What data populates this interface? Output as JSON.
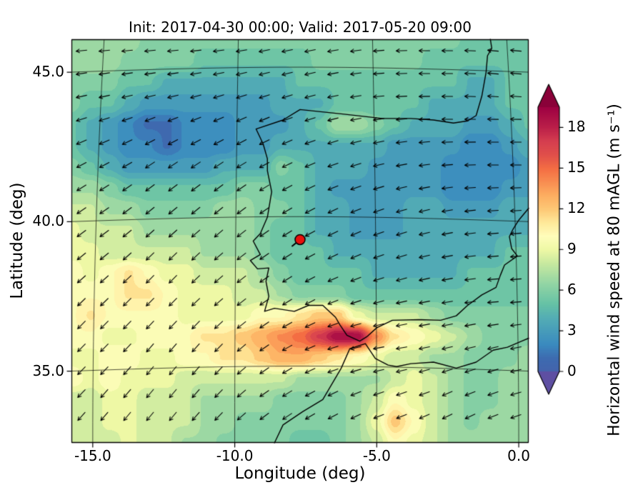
{
  "chart_data": {
    "type": "heatmap",
    "title": "Init: 2017-04-30 00:00; Valid: 2017-05-20 09:00",
    "xlabel": "Longitude (deg)",
    "ylabel": "Latitude (deg)",
    "x_ticks": [
      "-15.0",
      "-10.0",
      "-5.0",
      "0.0"
    ],
    "x_tick_values": [
      -15,
      -10,
      -5,
      0
    ],
    "y_ticks": [
      "45.0",
      "40.0",
      "35.0"
    ],
    "y_tick_values": [
      45,
      40,
      35
    ],
    "x_range": [
      -15.75,
      0.35
    ],
    "y_range": [
      32.6,
      46.1
    ],
    "grid_on": true,
    "colorbar": {
      "label": "Horizontal wind speed at 80 mAGL (m s⁻¹)",
      "ticks": [
        0,
        3,
        6,
        9,
        12,
        15,
        18
      ],
      "range": [
        0,
        19.5
      ],
      "extend": "both",
      "under_color": "#5e4fa2",
      "over_color": "#8a0139",
      "stops": [
        [
          0,
          "#4463ac"
        ],
        [
          1,
          "#3d6bb0"
        ],
        [
          2,
          "#3a8abf"
        ],
        [
          4,
          "#54aeb4"
        ],
        [
          5,
          "#66c2a5"
        ],
        [
          6.5,
          "#93d5a4"
        ],
        [
          8,
          "#c8e99f"
        ],
        [
          9,
          "#eef8a5"
        ],
        [
          10,
          "#fffdbb"
        ],
        [
          11,
          "#fee99a"
        ],
        [
          12,
          "#fdc876"
        ],
        [
          13,
          "#fdae61"
        ],
        [
          14,
          "#f88d51"
        ],
        [
          15,
          "#f46d43"
        ],
        [
          16,
          "#e04f4a"
        ],
        [
          17,
          "#d53e4f"
        ],
        [
          18,
          "#bb2049"
        ],
        [
          19.5,
          "#9e0142"
        ]
      ]
    },
    "wind_speed_grid": {
      "lon_min": -15.75,
      "lon_max": 0.35,
      "lat_min": 32.6,
      "lat_max": 46.1,
      "values_north_to_south": [
        [
          7,
          7,
          7,
          7,
          6,
          6,
          6,
          6,
          6,
          6,
          6,
          6,
          6,
          6,
          6,
          6,
          6,
          6,
          6,
          6,
          6,
          5,
          5,
          5,
          5
        ],
        [
          7,
          7,
          7,
          6,
          6,
          6,
          6,
          5,
          5,
          5,
          5,
          5,
          5,
          6,
          6,
          6,
          6,
          6,
          6,
          5,
          5,
          5,
          5,
          5,
          5
        ],
        [
          6,
          6,
          6,
          5,
          5,
          4,
          4,
          4,
          4,
          4,
          4,
          4,
          5,
          5,
          5,
          5,
          5,
          5,
          5,
          5,
          5,
          4,
          4,
          5,
          5
        ],
        [
          6,
          5,
          5,
          4,
          3,
          3,
          3,
          3,
          3,
          3,
          3,
          4,
          4,
          4,
          5,
          5,
          5,
          5,
          5,
          4,
          4,
          4,
          4,
          5,
          5
        ],
        [
          5,
          4,
          3,
          2,
          1,
          1,
          2,
          2,
          2,
          3,
          3,
          3,
          4,
          5,
          7,
          7,
          6,
          5,
          4,
          4,
          4,
          3,
          3,
          4,
          5
        ],
        [
          5,
          4,
          3,
          2,
          2,
          1,
          2,
          2,
          2,
          3,
          3,
          4,
          4,
          4,
          4,
          4,
          4,
          3,
          3,
          3,
          3,
          2,
          2,
          3,
          4
        ],
        [
          6,
          5,
          4,
          3,
          3,
          3,
          3,
          3,
          4,
          4,
          4,
          6,
          5,
          4,
          4,
          4,
          3,
          3,
          3,
          3,
          2,
          2,
          2,
          2,
          3
        ],
        [
          7,
          7,
          6,
          5,
          5,
          5,
          5,
          5,
          5,
          6,
          6,
          5,
          5,
          4,
          3,
          3,
          3,
          3,
          3,
          3,
          2,
          2,
          2,
          3,
          3
        ],
        [
          8,
          8,
          7,
          7,
          6,
          6,
          6,
          6,
          7,
          7,
          6,
          6,
          5,
          4,
          4,
          3,
          3,
          3,
          4,
          4,
          3,
          3,
          3,
          4,
          4
        ],
        [
          9,
          8,
          8,
          8,
          7,
          7,
          7,
          7,
          7,
          7,
          6,
          5,
          5,
          4,
          4,
          3,
          3,
          3,
          4,
          4,
          4,
          4,
          4,
          4,
          4
        ],
        [
          9,
          9,
          8,
          8,
          8,
          8,
          8,
          7,
          7,
          7,
          6,
          5,
          5,
          5,
          4,
          4,
          4,
          4,
          4,
          4,
          4,
          4,
          4,
          5,
          5
        ],
        [
          10,
          9,
          10,
          11,
          10,
          9,
          9,
          8,
          8,
          8,
          7,
          6,
          5,
          5,
          5,
          5,
          4,
          4,
          4,
          4,
          4,
          5,
          5,
          5,
          5
        ],
        [
          10,
          10,
          10,
          11,
          11,
          10,
          9,
          9,
          9,
          8,
          8,
          7,
          6,
          6,
          6,
          5,
          5,
          5,
          5,
          5,
          5,
          5,
          5,
          5,
          5
        ],
        [
          10,
          11,
          10,
          10,
          10,
          10,
          9,
          9,
          9,
          9,
          10,
          10,
          11,
          12,
          12,
          9,
          8,
          8,
          8,
          7,
          6,
          6,
          6,
          6,
          6
        ],
        [
          10,
          10,
          9,
          9,
          10,
          10,
          10,
          11,
          11,
          12,
          13,
          14,
          15,
          17,
          19,
          19,
          14,
          11,
          10,
          9,
          8,
          7,
          6,
          6,
          6
        ],
        [
          9,
          9,
          10,
          10,
          9,
          9,
          10,
          10,
          11,
          11,
          12,
          13,
          13,
          12,
          11,
          10,
          9,
          8,
          8,
          7,
          7,
          6,
          6,
          6,
          7
        ],
        [
          10,
          9,
          10,
          9,
          9,
          9,
          8,
          8,
          8,
          8,
          8,
          8,
          7,
          7,
          7,
          7,
          7,
          8,
          9,
          8,
          7,
          6,
          6,
          7,
          7
        ],
        [
          8,
          8,
          9,
          9,
          8,
          8,
          8,
          7,
          7,
          7,
          7,
          6,
          6,
          6,
          6,
          7,
          8,
          10,
          9,
          8,
          7,
          6,
          6,
          7,
          7
        ],
        [
          8,
          8,
          9,
          9,
          8,
          8,
          8,
          7,
          7,
          6,
          6,
          6,
          6,
          6,
          6,
          7,
          9,
          12,
          10,
          8,
          7,
          6,
          7,
          7,
          7
        ],
        [
          8,
          8,
          8,
          9,
          8,
          8,
          7,
          7,
          6,
          6,
          6,
          6,
          5,
          5,
          6,
          7,
          8,
          10,
          9,
          8,
          7,
          7,
          7,
          7,
          7
        ]
      ]
    },
    "wind_direction_grid": {
      "convention": "degrees the arrow points toward, 0=east, 90=north",
      "values_north_to_south": [
        [
          185,
          185,
          185,
          185,
          185,
          190,
          190,
          190,
          185,
          180,
          180,
          175,
          175
        ],
        [
          190,
          190,
          190,
          190,
          195,
          195,
          195,
          190,
          185,
          180,
          180,
          175,
          175
        ],
        [
          200,
          200,
          205,
          205,
          205,
          205,
          200,
          195,
          190,
          185,
          180,
          180,
          180
        ],
        [
          210,
          210,
          215,
          215,
          215,
          210,
          205,
          200,
          195,
          190,
          185,
          180,
          180
        ],
        [
          215,
          215,
          220,
          220,
          220,
          215,
          210,
          205,
          200,
          195,
          190,
          185,
          185
        ],
        [
          220,
          220,
          225,
          225,
          220,
          215,
          210,
          205,
          200,
          195,
          190,
          185,
          185
        ],
        [
          225,
          225,
          225,
          225,
          220,
          215,
          210,
          200,
          195,
          190,
          190,
          185,
          185
        ],
        [
          225,
          225,
          230,
          230,
          225,
          215,
          205,
          195,
          190,
          190,
          195,
          195,
          190
        ],
        [
          225,
          230,
          230,
          230,
          225,
          215,
          210,
          205,
          200,
          200,
          205,
          200,
          195
        ],
        [
          230,
          230,
          230,
          230,
          225,
          220,
          215,
          210,
          205,
          205,
          210,
          205,
          200
        ]
      ]
    },
    "marker": {
      "lon": -7.7,
      "lat": 39.4,
      "color": "#e8100c",
      "edge": "#000000"
    },
    "coastlines": {
      "iberia_france": [
        [
          0.35,
          40.45
        ],
        [
          0.0,
          40.05
        ],
        [
          -0.2,
          39.75
        ],
        [
          -0.33,
          39.5
        ],
        [
          -0.25,
          39.1
        ],
        [
          -0.05,
          38.85
        ],
        [
          -0.5,
          38.55
        ],
        [
          -0.65,
          38.2
        ],
        [
          -0.8,
          37.8
        ],
        [
          -1.3,
          37.55
        ],
        [
          -1.8,
          37.2
        ],
        [
          -2.2,
          36.85
        ],
        [
          -2.75,
          36.7
        ],
        [
          -3.5,
          36.72
        ],
        [
          -4.45,
          36.7
        ],
        [
          -5.0,
          36.45
        ],
        [
          -5.35,
          36.15
        ],
        [
          -5.6,
          36.0
        ],
        [
          -6.05,
          36.2
        ],
        [
          -6.3,
          36.55
        ],
        [
          -6.45,
          36.8
        ],
        [
          -6.9,
          37.2
        ],
        [
          -7.4,
          37.2
        ],
        [
          -7.9,
          37.0
        ],
        [
          -8.6,
          37.1
        ],
        [
          -8.95,
          37.0
        ],
        [
          -8.8,
          37.5
        ],
        [
          -8.9,
          38.0
        ],
        [
          -8.8,
          38.45
        ],
        [
          -9.2,
          38.42
        ],
        [
          -9.45,
          38.7
        ],
        [
          -9.1,
          38.9
        ],
        [
          -9.35,
          39.35
        ],
        [
          -9.1,
          39.6
        ],
        [
          -8.85,
          40.15
        ],
        [
          -8.7,
          41.0
        ],
        [
          -8.85,
          41.7
        ],
        [
          -8.85,
          42.1
        ],
        [
          -9.0,
          42.6
        ],
        [
          -9.25,
          43.1
        ],
        [
          -8.3,
          43.4
        ],
        [
          -7.7,
          43.75
        ],
        [
          -6.2,
          43.6
        ],
        [
          -4.8,
          43.45
        ],
        [
          -3.8,
          43.45
        ],
        [
          -3.0,
          43.4
        ],
        [
          -2.3,
          43.3
        ],
        [
          -1.8,
          43.37
        ],
        [
          -1.5,
          43.55
        ],
        [
          -1.3,
          44.2
        ],
        [
          -1.15,
          45.0
        ],
        [
          -1.1,
          45.55
        ],
        [
          -0.95,
          45.8
        ],
        [
          -1.0,
          46.1
        ]
      ],
      "north_africa": [
        [
          -8.6,
          32.6
        ],
        [
          -8.3,
          33.2
        ],
        [
          -7.6,
          33.65
        ],
        [
          -6.9,
          34.05
        ],
        [
          -6.25,
          35.1
        ],
        [
          -5.95,
          35.75
        ],
        [
          -5.4,
          35.92
        ],
        [
          -5.05,
          35.42
        ],
        [
          -4.6,
          35.2
        ],
        [
          -4.3,
          35.15
        ],
        [
          -3.8,
          35.25
        ],
        [
          -3.0,
          35.3
        ],
        [
          -2.2,
          35.1
        ],
        [
          -1.5,
          35.3
        ],
        [
          -0.9,
          35.7
        ],
        [
          -0.4,
          35.8
        ],
        [
          0.1,
          36.0
        ],
        [
          0.35,
          36.1
        ]
      ]
    }
  }
}
